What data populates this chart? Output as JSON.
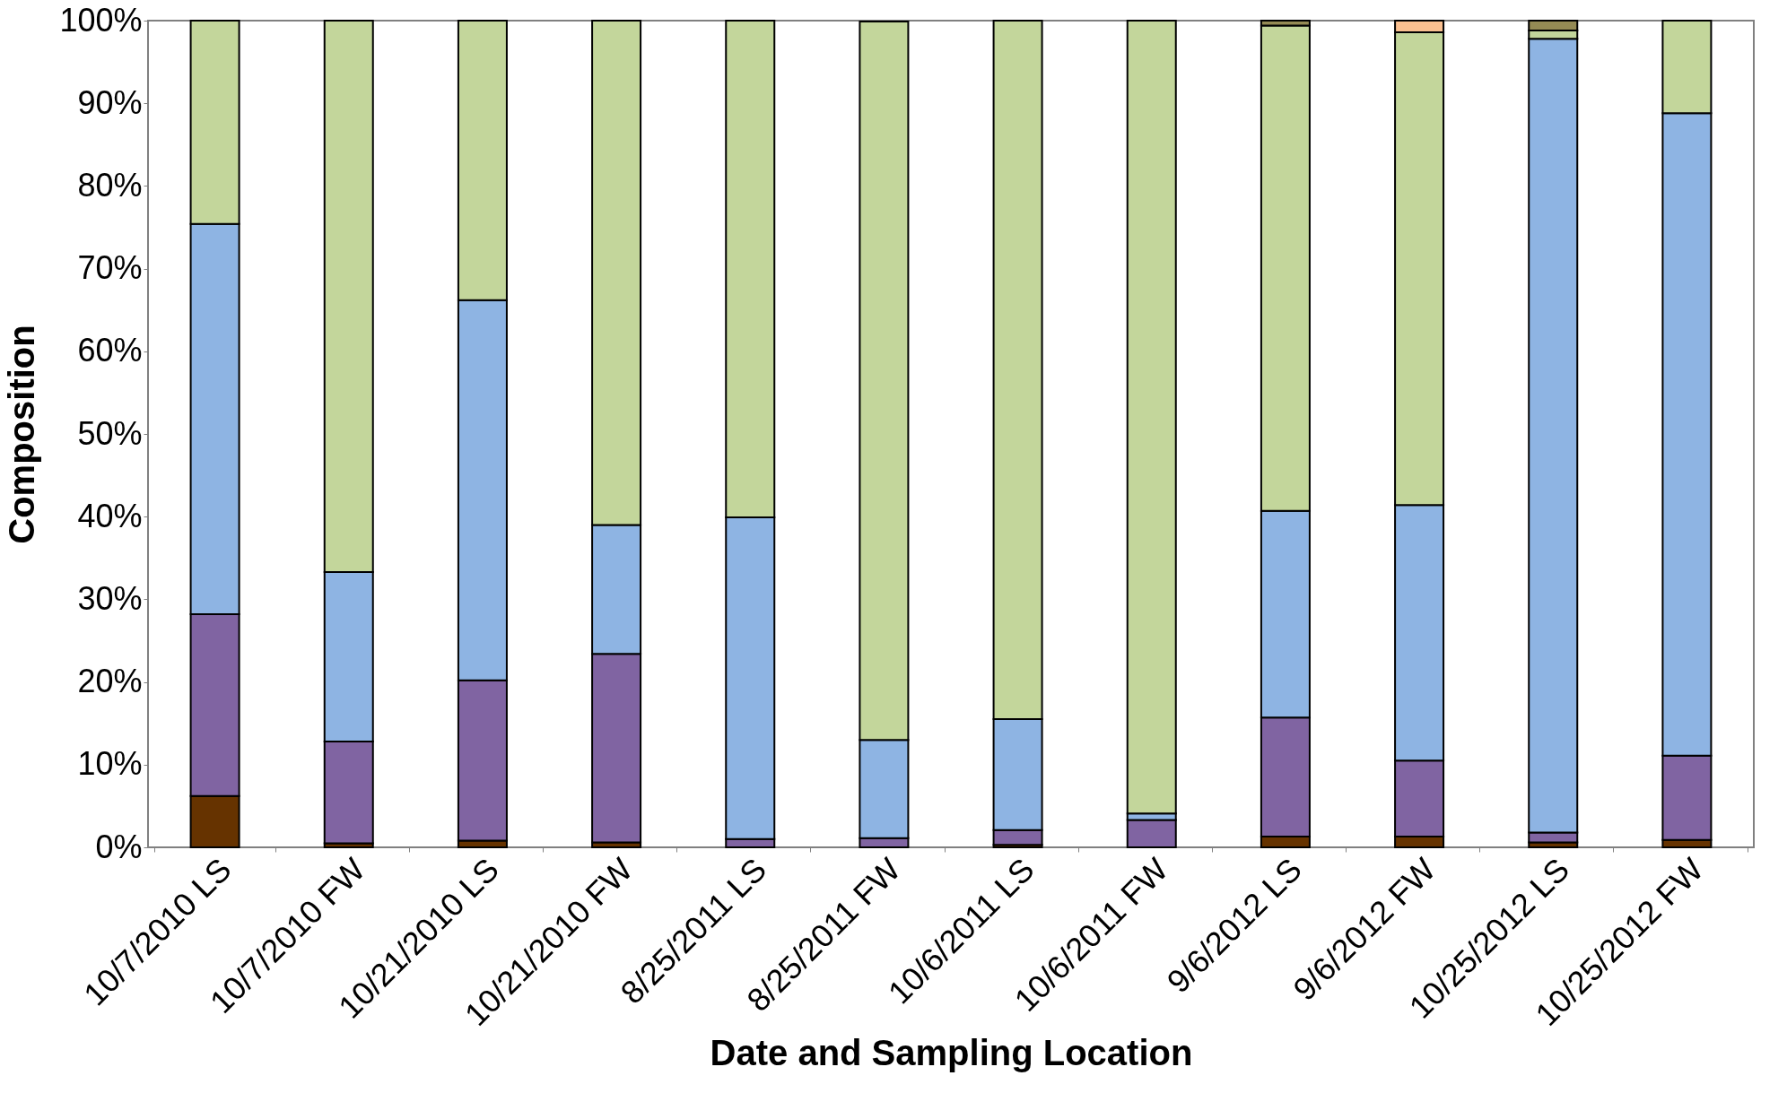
{
  "chart_data": {
    "type": "bar",
    "stacked": true,
    "xlabel": "Date and Sampling Location",
    "ylabel": "Composition",
    "categories": [
      "10/7/2010 LS",
      "10/7/2010 FW",
      "10/21/2010 LS",
      "10/21/2010 FW",
      "8/25/2011 LS",
      "8/25/2011 FW",
      "10/6/2011 LS",
      "10/6/2011 FW",
      "9/6/2012 LS",
      "9/6/2012 FW",
      "10/25/2012 LS",
      "10/25/2012 FW"
    ],
    "series": [
      {
        "color": "#663300",
        "values": [
          6.2,
          0.5,
          0.8,
          0.6,
          null,
          null,
          0.3,
          null,
          1.3,
          1.3,
          0.6,
          0.9
        ]
      },
      {
        "color": "#8064a2",
        "values": [
          22.0,
          12.3,
          19.4,
          22.8,
          1.0,
          1.1,
          1.8,
          3.3,
          14.4,
          9.2,
          1.2,
          10.2
        ]
      },
      {
        "color": "#8eb4e3",
        "values": [
          47.2,
          20.5,
          46.0,
          15.6,
          38.9,
          11.9,
          13.4,
          0.8,
          25.0,
          30.9,
          96.0,
          77.7
        ]
      },
      {
        "color": "#c3d69b",
        "values": [
          24.6,
          66.7,
          33.8,
          61.0,
          60.1,
          86.9,
          84.5,
          95.9,
          58.7,
          57.2,
          1.0,
          11.2
        ]
      },
      {
        "color": "#948a54",
        "values": [
          null,
          null,
          null,
          null,
          null,
          null,
          null,
          null,
          0.6,
          null,
          1.2,
          null
        ]
      },
      {
        "color": "#fac090",
        "values": [
          null,
          null,
          null,
          null,
          null,
          null,
          null,
          null,
          null,
          1.4,
          null,
          null
        ]
      }
    ],
    "ylim": [
      0,
      100
    ],
    "yticks": [
      {
        "value": 0,
        "label": "0%"
      },
      {
        "value": 10,
        "label": "10%"
      },
      {
        "value": 20,
        "label": "20%"
      },
      {
        "value": 30,
        "label": "30%"
      },
      {
        "value": 40,
        "label": "40%"
      },
      {
        "value": 50,
        "label": "50%"
      },
      {
        "value": 60,
        "label": "60%"
      },
      {
        "value": 70,
        "label": "70%"
      },
      {
        "value": 80,
        "label": "80%"
      },
      {
        "value": 90,
        "label": "90%"
      },
      {
        "value": 100,
        "label": "100%"
      }
    ],
    "grid": false,
    "legend": false
  }
}
